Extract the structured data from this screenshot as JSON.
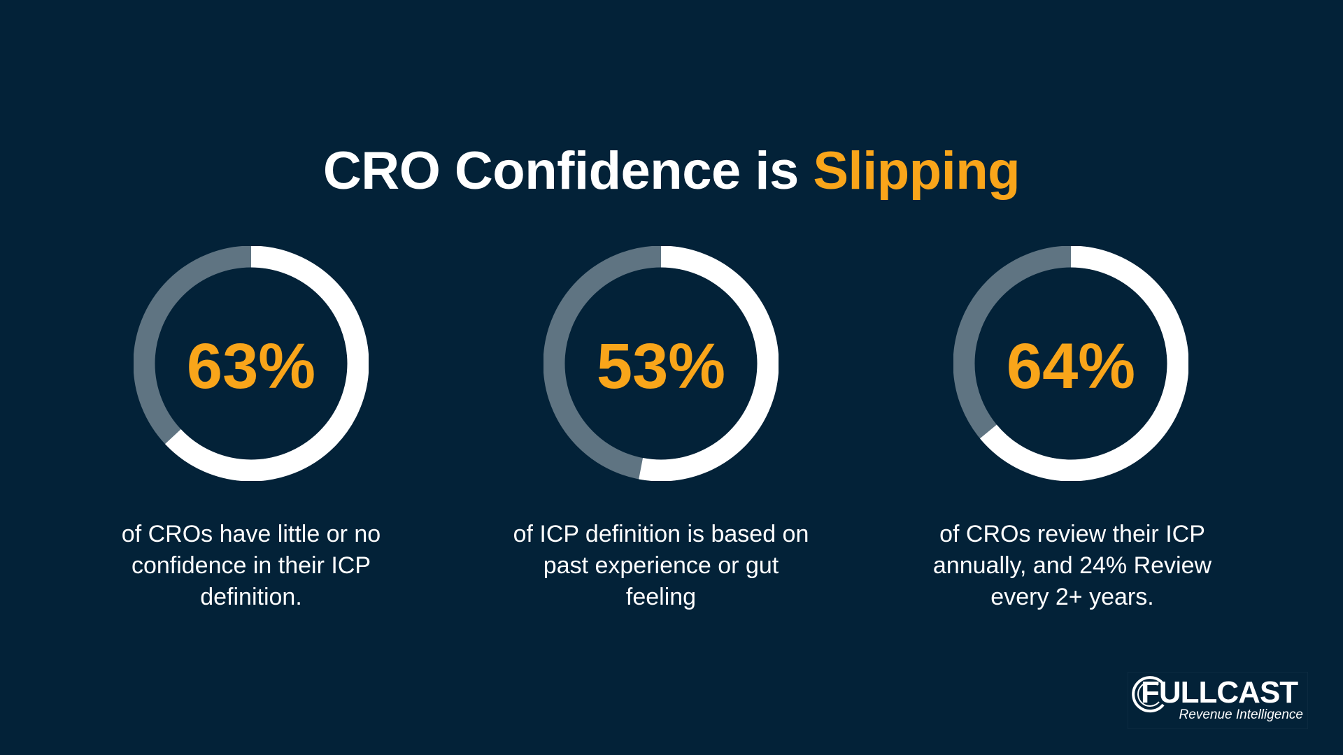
{
  "title": {
    "prefix": "CRO Confidence is ",
    "highlight": "Slipping"
  },
  "colors": {
    "background": "#032238",
    "accent": "#f9a51a",
    "ring_filled": "#ffffff",
    "ring_track": "#5f7482"
  },
  "stats": [
    {
      "value": 63,
      "label": "63%",
      "caption": "of CROs have little or no confidence in their ICP definition."
    },
    {
      "value": 53,
      "label": "53%",
      "caption": "of ICP definition is based on past experience or gut feeling"
    },
    {
      "value": 64,
      "label": "64%",
      "caption": "of CROs review their ICP annually, and 24% Review every 2+ years."
    }
  ],
  "logo": {
    "name": "FULLCAST",
    "tagline": "Revenue Intelligence"
  }
}
